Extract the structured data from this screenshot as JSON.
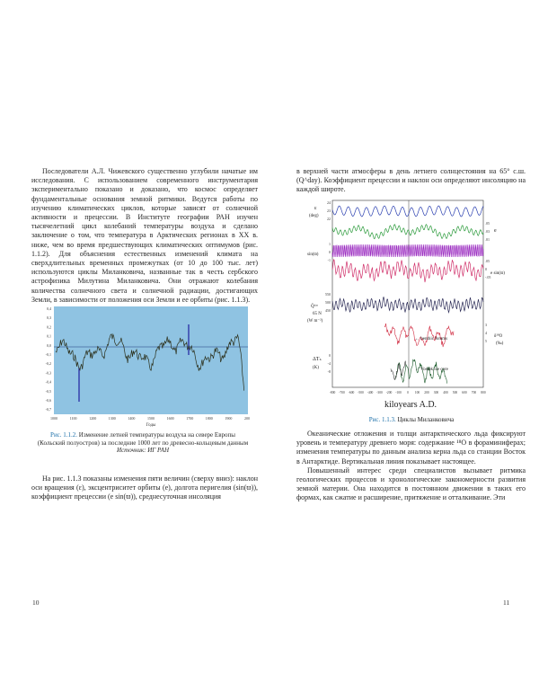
{
  "left_page": {
    "intro_paragraphs": [
      "Последователи А.Л. Чижевского существенно углубили начатые им исследования. С использованием современного инструментария экспериментально показано и доказано, что космос определяет фундаментальные основания земной ритмики. Ведутся работы по изучению климатических циклов, которые зависят от солнечной активности и прецессии. В Институте географии РАН изучен тысячелетний цикл колебаний температуры воздуха и сделано заключение о том, что температура в Арктических регионах в XX в. ниже, чем во время предшествующих климатических оптимумов (рис. 1.1.2). Для объяснения естественных изменений климата на сверхдлительных временных промежутках (от 10 до 100 тыс. лет) используются циклы Миланковича, названные так в честь сербского астрофизика Милутина Миланковича. Они отражают колебания количества солнечного света и солнечной радиации, достигающих Земли, в зависимости от положения оси Земли и ее орбиты (рис. 1.1.3)."
    ],
    "figure": {
      "label": "Рис. 1.1.2.",
      "caption": "Изменение летней температуры воздуха на севере Европы (Кольский полуостров) за последние 1000 лет по древесно-кольцевым данным",
      "source_label": "Источник:",
      "source": "ИГ РАН",
      "xlabel": "Годы",
      "x_ticks": [
        "1000",
        "1100",
        "1200",
        "1300",
        "1400",
        "1500",
        "1600",
        "1700",
        "1800",
        "1900",
        "2000"
      ],
      "y_ticks": [
        "0,4",
        "0,3",
        "0,2",
        "0,1",
        "0,0",
        "-0,1",
        "-0,2",
        "-0,3",
        "-0,4",
        "-0,5",
        "-0,6",
        "-0,7"
      ],
      "colors": {
        "plot_bg": "#8fc3e2",
        "line": "#2b2f1a",
        "marker": "#2020a0"
      }
    },
    "bottom_paragraph": "На рис. 1.1.3 показаны изменения пяти величин (сверху вниз): наклон оси вращения (ε), эксцентриситет орбиты (e), долгота перигелия (sin(ϖ)), коэффициент прецессии (e sin(ϖ)), среднесуточная инсоляция",
    "page_number": "10"
  },
  "right_page": {
    "top_paragraph": "в верхней части атмосферы в день летнего солнцестояния на 65° с.ш. (Q^day). Коэффициент прецессии и наклон оси определяют инсоляцию на каждой широте.",
    "figure": {
      "label": "Рис. 1.1.3.",
      "caption": "Циклы Миланковича",
      "xlabel": "kiloyears A.D.",
      "x_ticks": [
        "-800",
        "-700",
        "-600",
        "-500",
        "-400",
        "-300",
        "-200",
        "-100",
        "0",
        "100",
        "200",
        "300",
        "400",
        "500",
        "600",
        "700",
        "800"
      ],
      "labels": {
        "eps": "ε",
        "eps_unit": "(deg)",
        "e": "e",
        "sinw": "sin(ϖ)",
        "esinw": "e sin(ϖ)",
        "q": "Q̄ᵈᵃʸ",
        "q_lat": "65 N",
        "q_unit": "(W m⁻²)",
        "benthic": "← benthic forams",
        "d18o": "δ¹⁸O",
        "d18o_unit": "(‰)",
        "dt": "ΔTₛ",
        "dt_unit": "(K)",
        "vostok": "← Vostok ice core"
      },
      "left_ticks": {
        "eps": [
          "24",
          "23",
          "22"
        ],
        "sinw": [
          "1",
          "0",
          "-1"
        ],
        "q": [
          "550",
          "500",
          "450"
        ],
        "dt": [
          "0",
          "-4",
          "-8"
        ]
      },
      "right_ticks": {
        "e": [
          ".05",
          ".03",
          ".01"
        ],
        "esinw": [
          ".05",
          "0",
          "-.05"
        ],
        "d18o": [
          "3",
          "4",
          "5"
        ]
      },
      "colors": {
        "eps": "#2a3fb0",
        "e": "#2a9a3a",
        "sinw": "#9a2ac0",
        "esinw": "#d0306a",
        "q": "#2a2a55",
        "benthic": "#d02a40",
        "vostok": "#1a5a2a",
        "vostok_alt": "#111111"
      }
    },
    "bottom_paragraphs": [
      "Океанические отложения и толщи антарктического льда фиксируют уровень и температуру древнего моря: содержание ¹⁸O в фораминиферах; изменения температуры по данным анализа керна льда со станции Восток в Антарктиде. Вертикальная линия показывает настоящее.",
      "Повышенный интерес среди специалистов вызывает ритмика геологических процессов и хронологические закономерности развития земной материи. Она находится в постоянном движении в таких его формах, как сжатие и расширение, притяжение и отталкивание. Эти"
    ],
    "page_number": "11"
  }
}
